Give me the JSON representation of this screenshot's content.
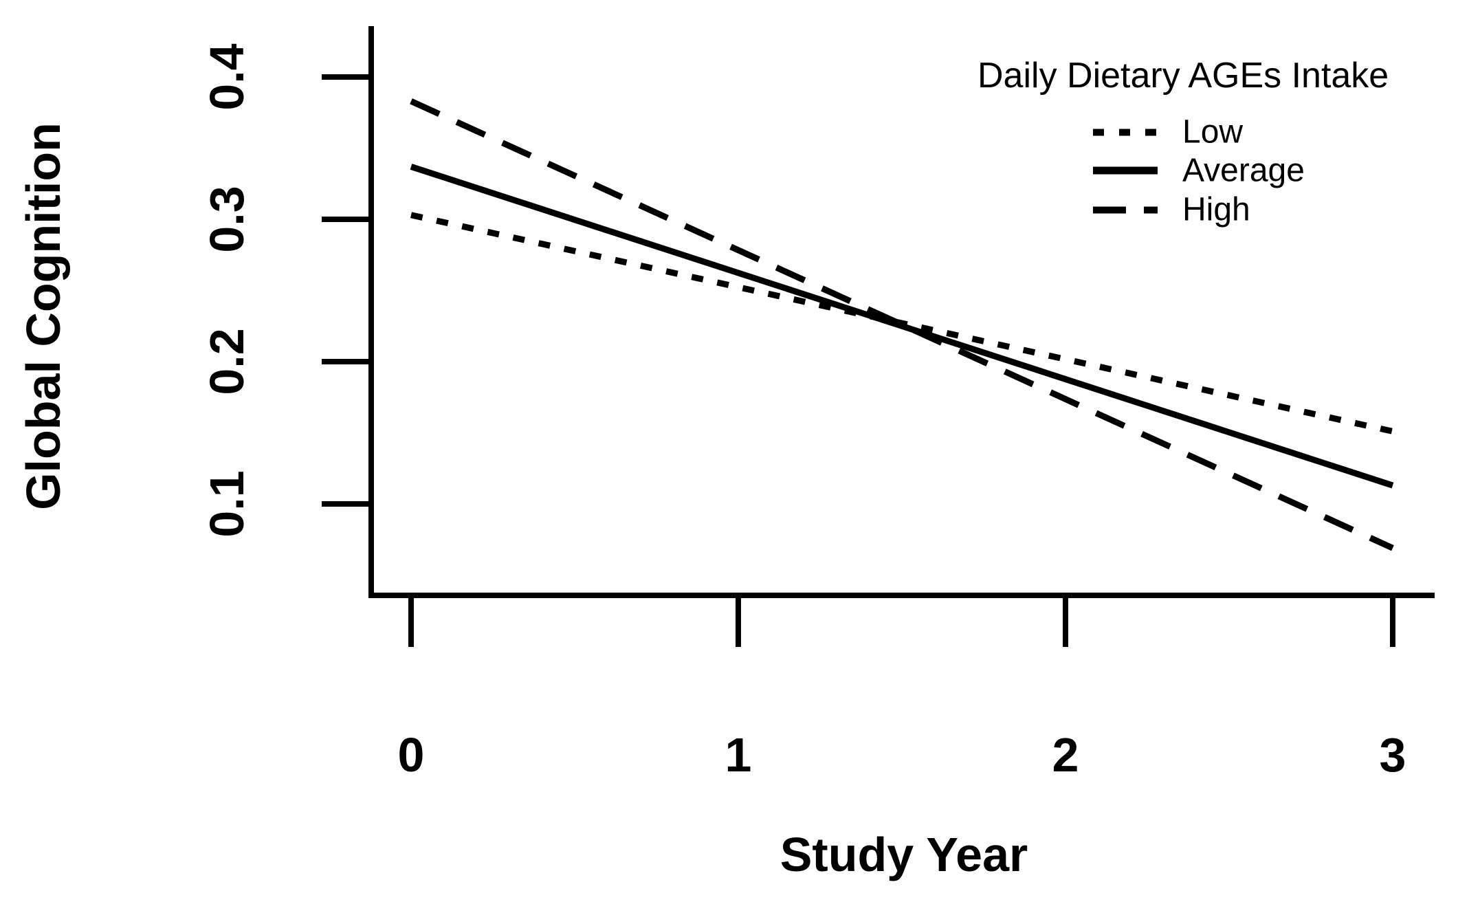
{
  "chart_data": {
    "type": "line",
    "title": "",
    "xlabel": "Study Year",
    "ylabel": "Global Cognition",
    "x_ticks": [
      0,
      1,
      2,
      3
    ],
    "y_ticks": [
      0.4,
      0.3,
      0.2,
      0.1
    ],
    "xlim": [
      0,
      3
    ],
    "ylim": [
      0.04,
      0.44
    ],
    "grid": false,
    "axis_color": "#000000",
    "line_color": "#000000",
    "legend": {
      "title": "Daily Dietary AGEs Intake",
      "position": "top-right",
      "entries": [
        {
          "label": "Low",
          "style": "dotted"
        },
        {
          "label": "Average",
          "style": "solid"
        },
        {
          "label": "High",
          "style": "dashed"
        }
      ]
    },
    "series": [
      {
        "name": "Low",
        "style": "dotted",
        "x": [
          0,
          3
        ],
        "values": [
          0.303,
          0.151
        ]
      },
      {
        "name": "Average",
        "style": "solid",
        "x": [
          0,
          3
        ],
        "values": [
          0.337,
          0.113
        ]
      },
      {
        "name": "High",
        "style": "dashed",
        "x": [
          0,
          3
        ],
        "values": [
          0.383,
          0.069
        ]
      }
    ]
  }
}
